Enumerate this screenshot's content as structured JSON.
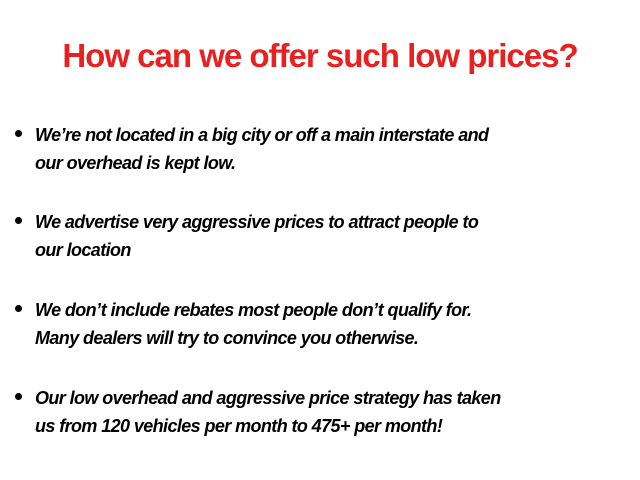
{
  "title": "How can we offer such low prices?",
  "colors": {
    "title": "#e8201f",
    "text": "#000000",
    "background": "#ffffff"
  },
  "bullets": [
    {
      "lines": [
        "We’re not located in a big city or off a main interstate and",
        "our overhead is kept low."
      ]
    },
    {
      "lines": [
        "We advertise very aggressive prices to attract people to",
        "our location"
      ]
    },
    {
      "lines": [
        "We don’t include rebates most people don’t qualify for.",
        "Many dealers will try to convince you otherwise."
      ]
    },
    {
      "lines": [
        "Our low overhead and aggressive price strategy has taken",
        "us from 120 vehicles per month to 475+ per month!"
      ]
    }
  ]
}
